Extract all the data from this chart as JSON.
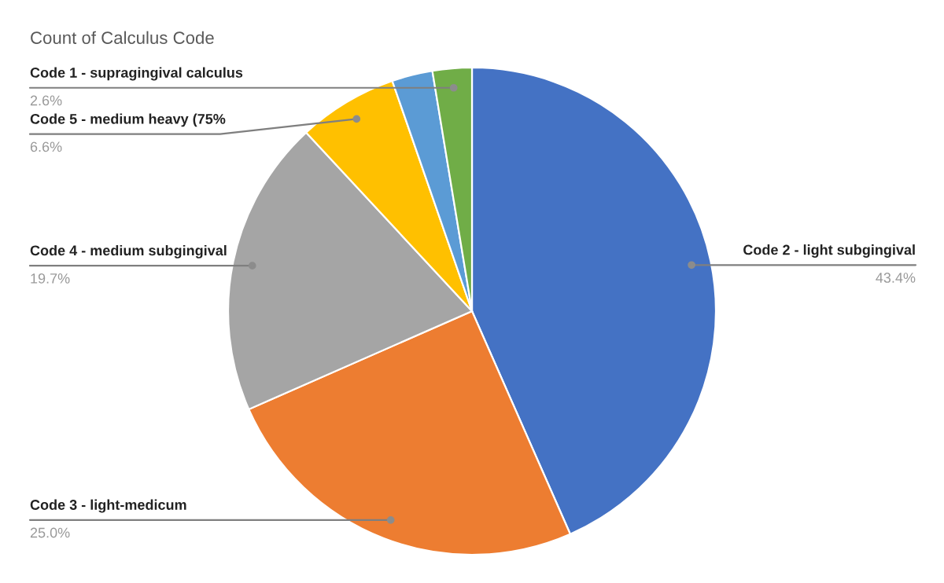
{
  "chart_data": {
    "type": "pie",
    "title": "Count of Calculus Code",
    "categories": [
      "Code 2 - light subgingival",
      "Code 3 - light-medicum",
      "Code 4 - medium subgingival",
      "Code 5 - medium heavy (75%",
      null,
      "Code 1 - supragingival calculus"
    ],
    "values": [
      43.4,
      25.0,
      19.7,
      6.6,
      2.7,
      2.6
    ],
    "colors": [
      "#4472c4",
      "#ed7d31",
      "#a5a5a5",
      "#ffc000",
      "#5b9bd5",
      "#70ad47"
    ],
    "value_labels": [
      "43.4%",
      "25.0%",
      "19.7%",
      "6.6%",
      null,
      "2.6%"
    ],
    "legend": false
  }
}
